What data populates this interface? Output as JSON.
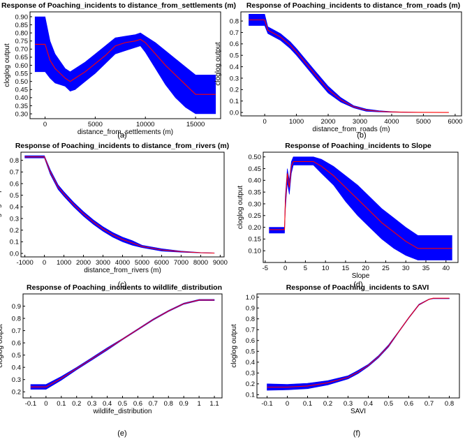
{
  "colors": {
    "band": "#0000ff",
    "line": "#ff0000",
    "axis": "#000000"
  },
  "chart_data": [
    {
      "type": "area",
      "title": "Response of Poaching_incidents to distance_from_settlements (m)",
      "xlabel": "distance_from_settlements (m)",
      "ylabel": "cloglog output",
      "caption": "(a)",
      "xlim": [
        -1500,
        17500
      ],
      "ylim": [
        0.27,
        0.93
      ],
      "xticks": [
        0,
        5000,
        10000,
        15000
      ],
      "yticks": [
        0.3,
        0.35,
        0.4,
        0.45,
        0.5,
        0.55,
        0.6,
        0.65,
        0.7,
        0.75,
        0.8,
        0.85,
        0.9
      ],
      "ydecimals": 2,
      "x": [
        -1000,
        0,
        500,
        1000,
        2000,
        2500,
        3000,
        4000,
        5000,
        6000,
        7000,
        8000,
        9000,
        9500,
        10000,
        11000,
        12000,
        13000,
        14000,
        15000,
        16000,
        17000
      ],
      "mean": [
        0.73,
        0.73,
        0.63,
        0.58,
        0.52,
        0.5,
        0.52,
        0.56,
        0.61,
        0.66,
        0.72,
        0.74,
        0.75,
        0.76,
        0.74,
        0.67,
        0.6,
        0.54,
        0.48,
        0.42,
        0.42,
        0.42
      ],
      "lower": [
        0.56,
        0.56,
        0.52,
        0.49,
        0.47,
        0.44,
        0.45,
        0.5,
        0.55,
        0.61,
        0.67,
        0.69,
        0.71,
        0.72,
        0.68,
        0.58,
        0.48,
        0.4,
        0.34,
        0.3,
        0.3,
        0.3
      ],
      "upper": [
        0.9,
        0.9,
        0.75,
        0.67,
        0.58,
        0.56,
        0.58,
        0.62,
        0.67,
        0.72,
        0.77,
        0.78,
        0.79,
        0.8,
        0.78,
        0.74,
        0.69,
        0.64,
        0.59,
        0.54,
        0.54,
        0.54
      ]
    },
    {
      "type": "area",
      "title": "Response of Poaching_incidents to distance_from_roads (m)",
      "xlabel": "distance_from_roads (m)",
      "ylabel": "cloglog output",
      "caption": "(b)",
      "xlim": [
        -750,
        6200
      ],
      "ylim": [
        -0.03,
        0.88
      ],
      "xticks": [
        0,
        1000,
        2000,
        3000,
        4000,
        5000,
        6000
      ],
      "yticks": [
        0.0,
        0.1,
        0.2,
        0.3,
        0.4,
        0.5,
        0.6,
        0.7,
        0.8
      ],
      "ydecimals": 1,
      "x": [
        -500,
        0,
        100,
        300,
        500,
        800,
        1000,
        1300,
        1600,
        2000,
        2400,
        2800,
        3200,
        3600,
        4000,
        4500,
        5000,
        5800
      ],
      "mean": [
        0.81,
        0.81,
        0.72,
        0.69,
        0.66,
        0.59,
        0.53,
        0.43,
        0.33,
        0.2,
        0.11,
        0.05,
        0.02,
        0.01,
        0.005,
        0.002,
        0.001,
        0.0
      ],
      "lower": [
        0.76,
        0.76,
        0.69,
        0.66,
        0.63,
        0.56,
        0.5,
        0.4,
        0.3,
        0.17,
        0.09,
        0.04,
        0.01,
        0.005,
        0.002,
        0.001,
        0.0,
        0.0
      ],
      "upper": [
        0.86,
        0.86,
        0.75,
        0.72,
        0.69,
        0.62,
        0.56,
        0.46,
        0.36,
        0.23,
        0.13,
        0.06,
        0.03,
        0.015,
        0.007,
        0.003,
        0.001,
        0.0
      ]
    },
    {
      "type": "area",
      "title": "Response of Poaching_incidents to distance_from_rivers (m)",
      "xlabel": "distance_from_rivers (m)",
      "ylabel": "cloglog output",
      "caption": "(c)",
      "xlim": [
        -1200,
        9200
      ],
      "ylim": [
        -0.03,
        0.87
      ],
      "xticks": [
        -1000,
        0,
        1000,
        2000,
        3000,
        4000,
        5000,
        6000,
        7000,
        8000,
        9000
      ],
      "yticks": [
        0.0,
        0.1,
        0.2,
        0.3,
        0.4,
        0.5,
        0.6,
        0.7,
        0.8
      ],
      "ydecimals": 1,
      "x": [
        -1000,
        0,
        300,
        700,
        1000,
        1500,
        2000,
        2500,
        3000,
        3500,
        4000,
        4500,
        5000,
        5500,
        6000,
        7000,
        8000,
        8700
      ],
      "mean": [
        0.83,
        0.83,
        0.7,
        0.57,
        0.51,
        0.42,
        0.34,
        0.27,
        0.21,
        0.16,
        0.12,
        0.09,
        0.06,
        0.045,
        0.03,
        0.015,
        0.006,
        0.003
      ],
      "lower": [
        0.82,
        0.82,
        0.68,
        0.55,
        0.49,
        0.4,
        0.32,
        0.25,
        0.19,
        0.14,
        0.1,
        0.07,
        0.05,
        0.035,
        0.02,
        0.01,
        0.004,
        0.002
      ],
      "upper": [
        0.84,
        0.84,
        0.72,
        0.59,
        0.53,
        0.44,
        0.36,
        0.29,
        0.23,
        0.18,
        0.14,
        0.11,
        0.07,
        0.055,
        0.04,
        0.02,
        0.008,
        0.004
      ]
    },
    {
      "type": "area",
      "title": "Response of Poaching_incidents to Slope",
      "xlabel": "Slope",
      "ylabel": "cloglog output",
      "caption": "(d)",
      "xlim": [
        -5.5,
        43
      ],
      "ylim": [
        0.05,
        0.52
      ],
      "xticks": [
        -5,
        0,
        5,
        10,
        15,
        20,
        25,
        30,
        35,
        40
      ],
      "yticks": [
        0.1,
        0.15,
        0.2,
        0.25,
        0.3,
        0.35,
        0.4,
        0.45,
        0.5
      ],
      "ydecimals": 2,
      "x": [
        -4,
        -0.2,
        0,
        0.5,
        1,
        1.5,
        2,
        7,
        9,
        12,
        15,
        18,
        21,
        24,
        27,
        30,
        33,
        35,
        40,
        41.5
      ],
      "mean": [
        0.19,
        0.19,
        0.3,
        0.43,
        0.37,
        0.46,
        0.48,
        0.48,
        0.46,
        0.42,
        0.37,
        0.32,
        0.27,
        0.22,
        0.18,
        0.14,
        0.11,
        0.11,
        0.11,
        0.11
      ],
      "lower": [
        0.175,
        0.175,
        0.27,
        0.39,
        0.34,
        0.43,
        0.465,
        0.465,
        0.43,
        0.38,
        0.31,
        0.25,
        0.2,
        0.15,
        0.11,
        0.08,
        0.06,
        0.06,
        0.06,
        0.06
      ],
      "upper": [
        0.2,
        0.2,
        0.33,
        0.45,
        0.4,
        0.48,
        0.5,
        0.5,
        0.49,
        0.46,
        0.42,
        0.38,
        0.33,
        0.28,
        0.24,
        0.2,
        0.165,
        0.165,
        0.165,
        0.165
      ]
    },
    {
      "type": "area",
      "title": "Response of Poaching_incidents to wildlife_distribution",
      "xlabel": "wildlife_distribution",
      "ylabel": "cloglog output",
      "caption": "(e)",
      "xlim": [
        -0.15,
        1.15
      ],
      "ylim": [
        0.15,
        1.0
      ],
      "xticks": [
        -0.1,
        0.0,
        0.1,
        0.2,
        0.3,
        0.4,
        0.5,
        0.6,
        0.7,
        0.8,
        0.9,
        1.0,
        1.1
      ],
      "yticks": [
        0.2,
        0.3,
        0.4,
        0.5,
        0.6,
        0.7,
        0.8,
        0.9
      ],
      "ydecimals": 1,
      "x": [
        -0.1,
        0.0,
        0.1,
        0.2,
        0.3,
        0.4,
        0.5,
        0.6,
        0.7,
        0.8,
        0.9,
        1.0,
        1.1
      ],
      "mean": [
        0.24,
        0.24,
        0.31,
        0.39,
        0.47,
        0.55,
        0.63,
        0.71,
        0.79,
        0.86,
        0.92,
        0.95,
        0.95
      ],
      "lower": [
        0.22,
        0.22,
        0.295,
        0.38,
        0.46,
        0.54,
        0.625,
        0.705,
        0.785,
        0.855,
        0.915,
        0.945,
        0.945
      ],
      "upper": [
        0.26,
        0.26,
        0.325,
        0.4,
        0.48,
        0.56,
        0.635,
        0.715,
        0.795,
        0.865,
        0.925,
        0.955,
        0.955
      ]
    },
    {
      "type": "area",
      "title": "Response of Poaching_incidents to SAVI",
      "xlabel": "SAVI",
      "ylabel": "cloglog output",
      "caption": "(f)",
      "xlim": [
        -0.15,
        0.85
      ],
      "ylim": [
        0.07,
        1.03
      ],
      "xticks": [
        -0.1,
        0.0,
        0.1,
        0.2,
        0.3,
        0.4,
        0.5,
        0.6,
        0.7,
        0.8
      ],
      "yticks": [
        0.1,
        0.2,
        0.3,
        0.4,
        0.5,
        0.6,
        0.7,
        0.8,
        0.9,
        1.0
      ],
      "ydecimals": 1,
      "x": [
        -0.1,
        0.0,
        0.1,
        0.2,
        0.3,
        0.35,
        0.4,
        0.45,
        0.5,
        0.55,
        0.6,
        0.65,
        0.7,
        0.72,
        0.8
      ],
      "mean": [
        0.17,
        0.17,
        0.18,
        0.21,
        0.26,
        0.31,
        0.37,
        0.45,
        0.55,
        0.68,
        0.81,
        0.93,
        0.98,
        0.99,
        0.99
      ],
      "lower": [
        0.14,
        0.145,
        0.155,
        0.19,
        0.245,
        0.295,
        0.36,
        0.44,
        0.54,
        0.675,
        0.805,
        0.925,
        0.978,
        0.985,
        0.985
      ],
      "upper": [
        0.2,
        0.195,
        0.205,
        0.23,
        0.275,
        0.325,
        0.38,
        0.46,
        0.56,
        0.685,
        0.815,
        0.935,
        0.983,
        0.99,
        0.99
      ]
    }
  ]
}
